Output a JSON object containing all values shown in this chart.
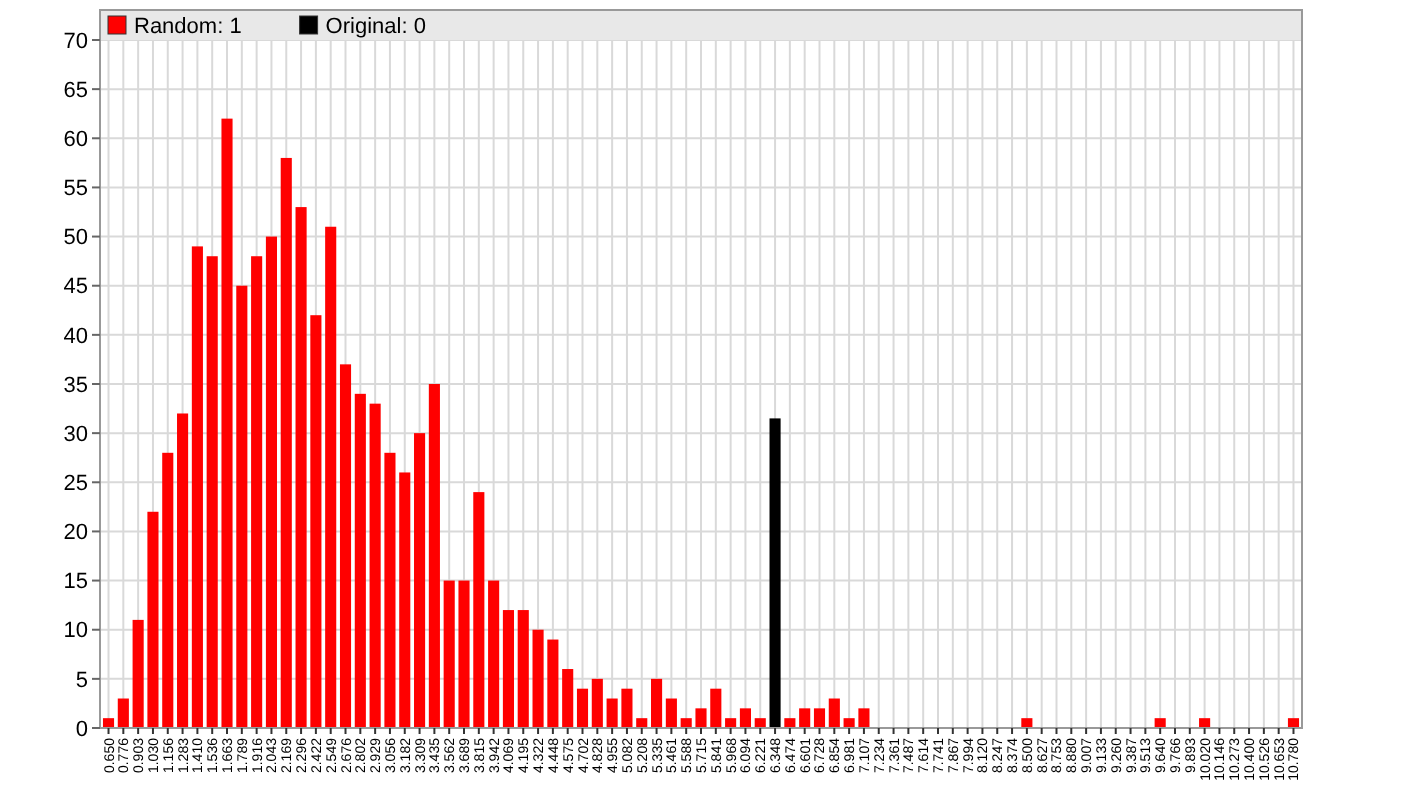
{
  "chart_data": {
    "type": "bar",
    "categories": [
      "0.650",
      "0.776",
      "0.903",
      "1.030",
      "1.156",
      "1.283",
      "1.410",
      "1.536",
      "1.663",
      "1.789",
      "1.916",
      "2.043",
      "2.169",
      "2.296",
      "2.422",
      "2.549",
      "2.676",
      "2.802",
      "2.929",
      "3.056",
      "3.182",
      "3.309",
      "3.435",
      "3.562",
      "3.689",
      "3.815",
      "3.942",
      "4.069",
      "4.195",
      "4.322",
      "4.448",
      "4.575",
      "4.702",
      "4.828",
      "4.955",
      "5.082",
      "5.208",
      "5.335",
      "5.461",
      "5.588",
      "5.715",
      "5.841",
      "5.968",
      "6.094",
      "6.221",
      "6.348",
      "6.474",
      "6.601",
      "6.728",
      "6.854",
      "6.981",
      "7.107",
      "7.234",
      "7.361",
      "7.487",
      "7.614",
      "7.741",
      "7.867",
      "7.994",
      "8.120",
      "8.247",
      "8.374",
      "8.500",
      "8.627",
      "8.753",
      "8.880",
      "9.007",
      "9.133",
      "9.260",
      "9.387",
      "9.513",
      "9.640",
      "9.766",
      "9.893",
      "10.020",
      "10.146",
      "10.273",
      "10.400",
      "10.526",
      "10.653",
      "10.780"
    ],
    "series": [
      {
        "name": "Random: 1",
        "color": "#ff0000",
        "values": [
          1,
          3,
          11,
          22,
          28,
          32,
          49,
          48,
          62,
          45,
          48,
          50,
          58,
          53,
          42,
          51,
          37,
          34,
          33,
          28,
          26,
          30,
          35,
          15,
          15,
          24,
          15,
          12,
          12,
          10,
          9,
          6,
          4,
          5,
          3,
          4,
          1,
          5,
          3,
          1,
          2,
          4,
          1,
          2,
          1,
          null,
          1,
          2,
          2,
          3,
          1,
          2,
          0,
          0,
          0,
          0,
          0,
          0,
          0,
          0,
          0,
          0,
          1,
          0,
          0,
          0,
          0,
          0,
          0,
          0,
          0,
          1,
          0,
          0,
          1,
          0,
          0,
          0,
          0,
          0,
          1
        ]
      },
      {
        "name": "Original: 0",
        "color": "#000000",
        "values": [
          null,
          null,
          null,
          null,
          null,
          null,
          null,
          null,
          null,
          null,
          null,
          null,
          null,
          null,
          null,
          null,
          null,
          null,
          null,
          null,
          null,
          null,
          null,
          null,
          null,
          null,
          null,
          null,
          null,
          null,
          null,
          null,
          null,
          null,
          null,
          null,
          null,
          null,
          null,
          null,
          null,
          null,
          null,
          null,
          null,
          31.5,
          null,
          null,
          null,
          null,
          null,
          null,
          null,
          null,
          null,
          null,
          null,
          null,
          null,
          null,
          null,
          null,
          null,
          null,
          null,
          null,
          null,
          null,
          null,
          null,
          null,
          null,
          null,
          null,
          null,
          null,
          null,
          null,
          null,
          null,
          null
        ]
      }
    ],
    "ylim": [
      0,
      70
    ],
    "yticks": [
      0,
      5,
      10,
      15,
      20,
      25,
      30,
      35,
      40,
      45,
      50,
      55,
      60,
      65,
      70
    ],
    "grid": true,
    "legend": "top left"
  }
}
